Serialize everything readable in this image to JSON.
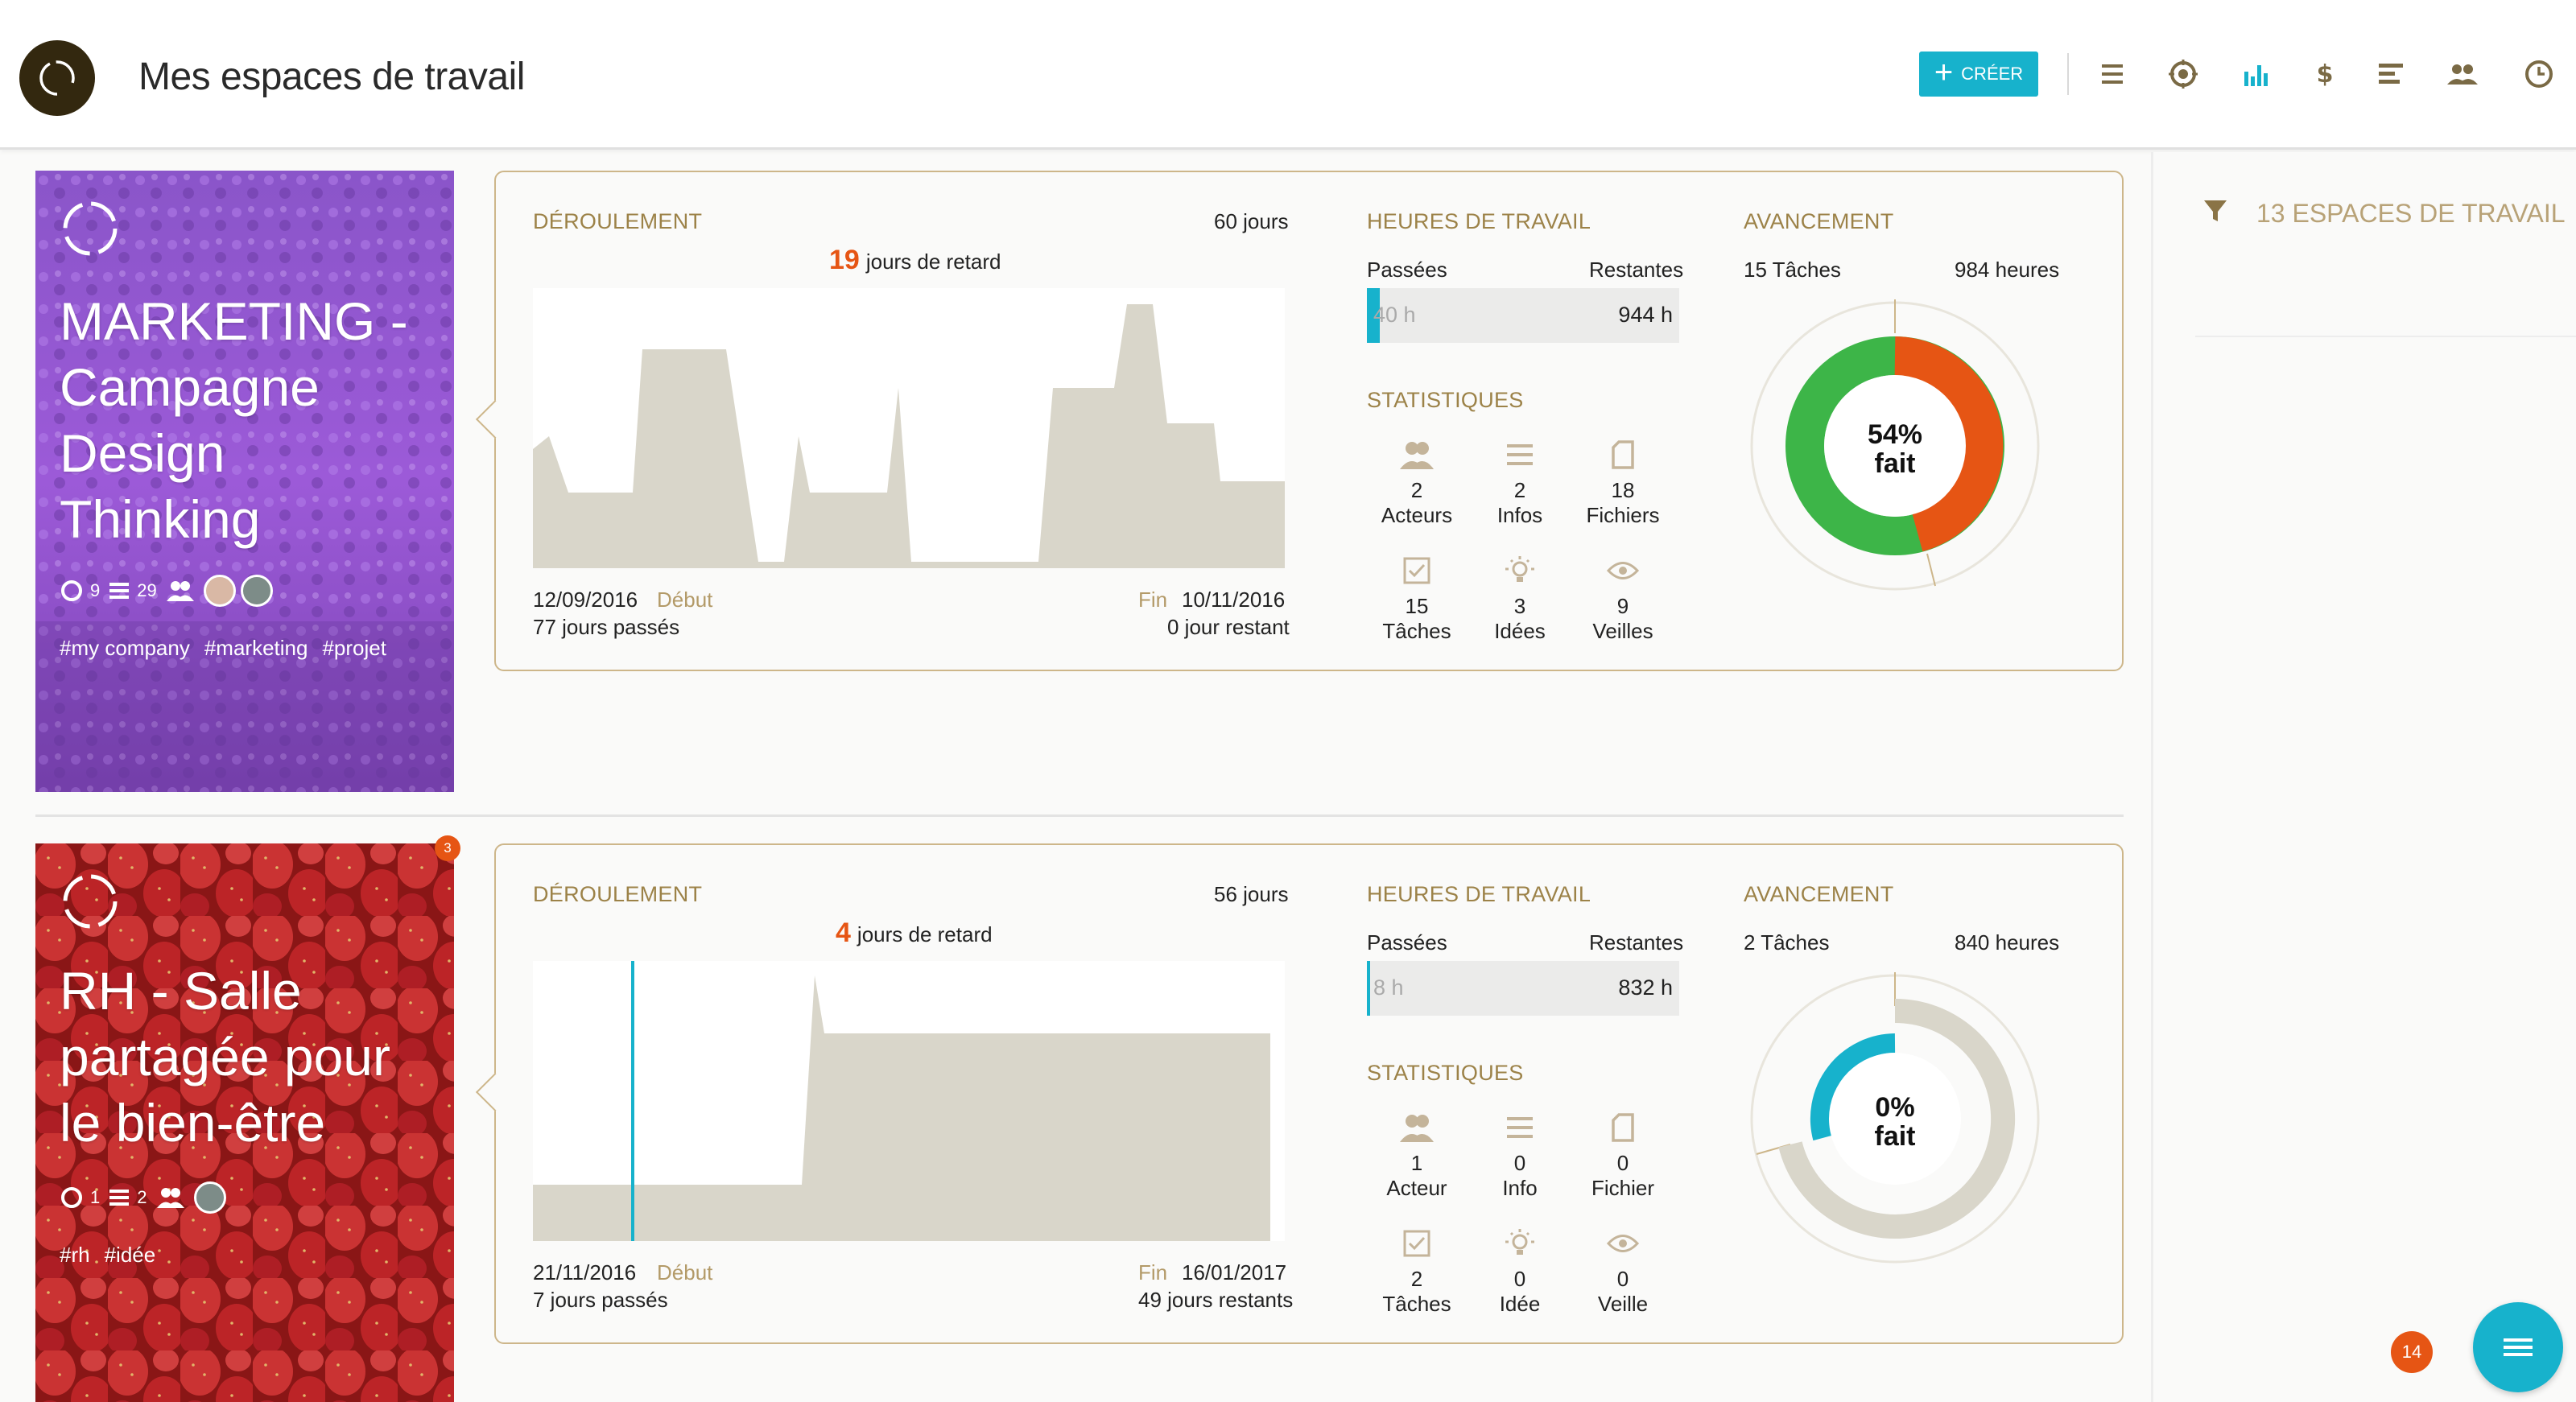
{
  "header": {
    "title": "Mes espaces de travail",
    "create_label": "CRÉER",
    "icons": [
      "list-icon",
      "target-icon",
      "bar-chart-icon",
      "dollar-icon",
      "gantt-icon",
      "team-icon",
      "clock-icon"
    ]
  },
  "colors": {
    "accent": "#17b2cc",
    "tan": "#9c8248",
    "orange": "#e65514",
    "green": "#3db548",
    "dark": "#33280f"
  },
  "workspaces": [
    {
      "title_lines": [
        "MARKETING -",
        "Campagne",
        "Design",
        "Thinking"
      ],
      "meta_circle": "9",
      "meta_list": "29",
      "tags": [
        "#my company",
        "#marketing",
        "#projet"
      ],
      "badge": "",
      "deroulement": {
        "title": "DÉROULEMENT",
        "total_days": "60 jours",
        "delay_num": "19",
        "delay_text": "jours de retard",
        "start_date": "12/09/2016",
        "start_label": "Début",
        "days_passed": "77 jours passés",
        "end_label": "Fin",
        "end_date": "10/11/2016",
        "days_left": "0 jour restant"
      },
      "heures": {
        "title": "HEURES DE TRAVAIL",
        "passed_label": "Passées",
        "remaining_label": "Restantes",
        "passed": "40 h",
        "remaining": "944 h",
        "fill_fraction": 0.04
      },
      "stats": {
        "title": "STATISTIQUES",
        "items": [
          {
            "num": "2",
            "label": "Acteurs",
            "icon": "users-icon"
          },
          {
            "num": "2",
            "label": "Infos",
            "icon": "list-icon"
          },
          {
            "num": "18",
            "label": "Fichiers",
            "icon": "file-icon"
          },
          {
            "num": "15",
            "label": "Tâches",
            "icon": "checkbox-icon"
          },
          {
            "num": "3",
            "label": "Idées",
            "icon": "lightbulb-icon"
          },
          {
            "num": "9",
            "label": "Veilles",
            "icon": "eye-icon"
          }
        ]
      },
      "avancement": {
        "title": "AVANCEMENT",
        "tasks": "15 Tâches",
        "hours": "984 heures",
        "pct_label": "54%",
        "fait": "fait",
        "percent": 54
      }
    },
    {
      "title_lines": [
        "RH - Salle",
        "partagée pour",
        "le bien-être"
      ],
      "meta_circle": "1",
      "meta_list": "2",
      "tags": [
        "#rh",
        "#idée"
      ],
      "badge": "3",
      "deroulement": {
        "title": "DÉROULEMENT",
        "total_days": "56 jours",
        "delay_num": "4",
        "delay_text": "jours de retard",
        "start_date": "21/11/2016",
        "start_label": "Début",
        "days_passed": "7 jours passés",
        "end_label": "Fin",
        "end_date": "16/01/2017",
        "days_left": "49 jours restants"
      },
      "heures": {
        "title": "HEURES DE TRAVAIL",
        "passed_label": "Passées",
        "remaining_label": "Restantes",
        "passed": "8 h",
        "remaining": "832 h",
        "fill_fraction": 0.01
      },
      "stats": {
        "title": "STATISTIQUES",
        "items": [
          {
            "num": "1",
            "label": "Acteur",
            "icon": "users-icon"
          },
          {
            "num": "0",
            "label": "Info",
            "icon": "list-icon"
          },
          {
            "num": "0",
            "label": "Fichier",
            "icon": "file-icon"
          },
          {
            "num": "2",
            "label": "Tâches",
            "icon": "checkbox-icon"
          },
          {
            "num": "0",
            "label": "Idée",
            "icon": "lightbulb-icon"
          },
          {
            "num": "0",
            "label": "Veille",
            "icon": "eye-icon"
          }
        ]
      },
      "avancement": {
        "title": "AVANCEMENT",
        "tasks": "2 Tâches",
        "hours": "840 heures",
        "pct_label": "0%",
        "fait": "fait",
        "percent": 0
      }
    }
  ],
  "sidebar": {
    "filter_label": "13 ESPACES DE TRAVAIL"
  },
  "fab": {
    "badge": "14"
  }
}
